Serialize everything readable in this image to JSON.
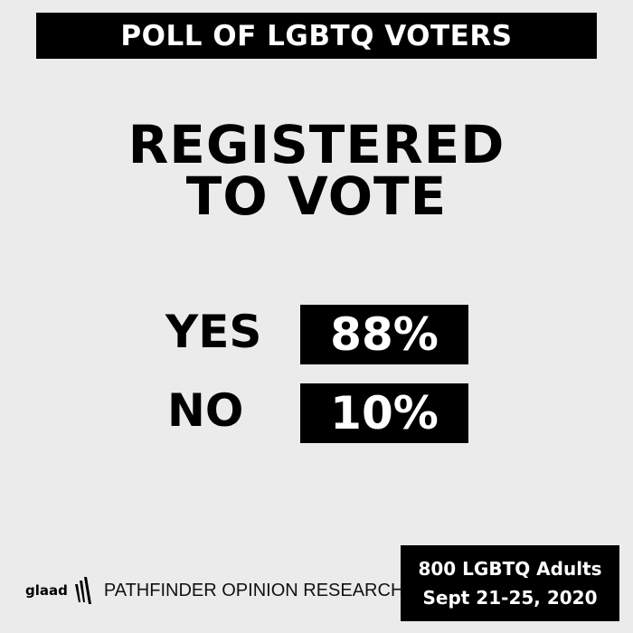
{
  "header": {
    "title": "POLL OF LGBTQ VOTERS"
  },
  "headline": {
    "line1": "REGISTERED",
    "line2": "TO VOTE"
  },
  "results": [
    {
      "label": "YES",
      "value": "88%"
    },
    {
      "label": "NO",
      "value": "10%"
    }
  ],
  "footer": {
    "logo_text": "glaad",
    "partner": "PATHFINDER OPINION RESEARCH",
    "sample": "800 LGBTQ Adults",
    "dates": "Sept 21-25, 2020"
  },
  "colors": {
    "background": "#ebebeb",
    "box": "#000000",
    "box_text": "#ffffff"
  }
}
